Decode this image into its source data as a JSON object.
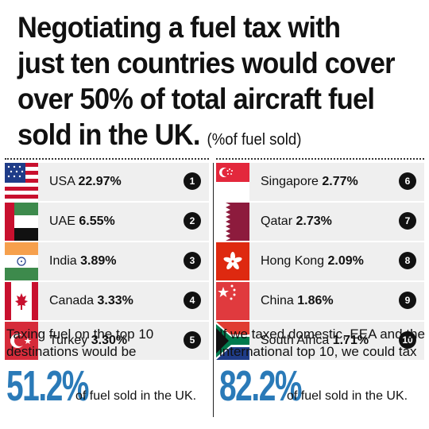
{
  "headline": {
    "line1": "Negotiating a fuel tax with",
    "line2": "just ten countries would cover",
    "line3": "over 50% of total aircraft fuel",
    "line4": "sold in the UK.",
    "unit_note": "(%of fuel sold)"
  },
  "countries": [
    {
      "name": "USA",
      "value": "22.97%",
      "rank": "1",
      "flag": "usa-flag-icon"
    },
    {
      "name": "UAE",
      "value": "6.55%",
      "rank": "2",
      "flag": "uae-flag-icon"
    },
    {
      "name": "India",
      "value": "3.89%",
      "rank": "3",
      "flag": "india-flag-icon"
    },
    {
      "name": "Canada",
      "value": "3.33%",
      "rank": "4",
      "flag": "canada-flag-icon"
    },
    {
      "name": "Turkey",
      "value": "3.30%",
      "rank": "5",
      "flag": "turkey-flag-icon"
    },
    {
      "name": "Singapore",
      "value": "2.77%",
      "rank": "6",
      "flag": "singapore-flag-icon"
    },
    {
      "name": "Qatar",
      "value": "2.73%",
      "rank": "7",
      "flag": "qatar-flag-icon"
    },
    {
      "name": "Hong Kong",
      "value": "2.09%",
      "rank": "8",
      "flag": "hong-kong-flag-icon"
    },
    {
      "name": "China",
      "value": "1.86%",
      "rank": "9",
      "flag": "china-flag-icon"
    },
    {
      "name": "South Africa",
      "value": "1.71%",
      "rank": "10",
      "flag": "south-africa-flag-icon"
    }
  ],
  "summary_left": {
    "text_line1": "Taxing fuel on the top 10",
    "text_line2": "destinations would be",
    "big_value": "51.2%",
    "after": "of fuel sold in the UK."
  },
  "summary_right": {
    "text_line1": "If we taxed domestic, EEA and the",
    "text_line2": "international top 10, we could tax",
    "big_value": "82.2%",
    "after": "of fuel sold in the UK."
  },
  "colors": {
    "accent": "#2a7ab8",
    "row_background": "#efefef",
    "badge": "#111111"
  }
}
